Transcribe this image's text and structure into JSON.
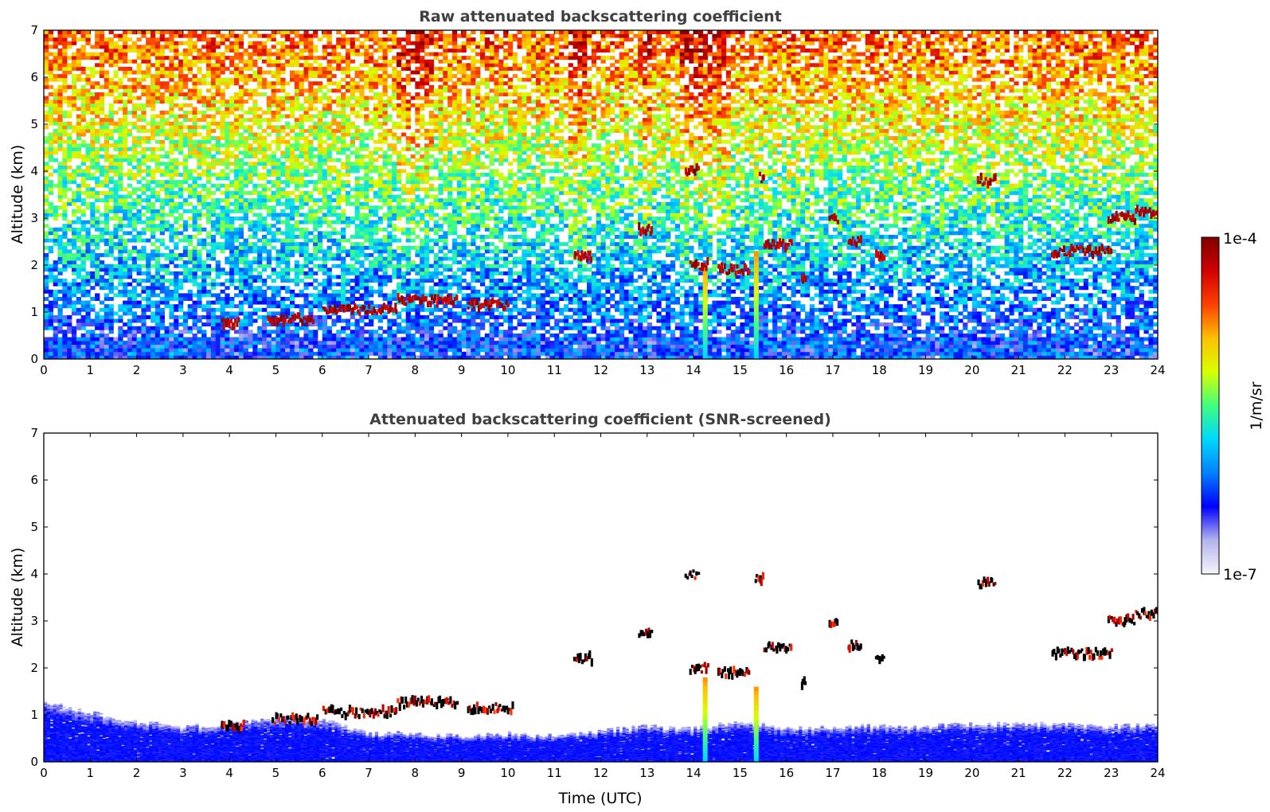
{
  "figure": {
    "colorbar": {
      "max_label": "1e-4",
      "min_label": "1e-7",
      "unit_label": "1/m/sr",
      "vmin": 1e-07,
      "vmax": 0.0001,
      "scale": "log",
      "colormap": [
        "#f4f4fb",
        "#b4b4ee",
        "#0000ff",
        "#0080ff",
        "#00d8ff",
        "#40ff80",
        "#d8ff00",
        "#ffc000",
        "#ff4000",
        "#d00000",
        "#800000"
      ]
    }
  },
  "chart_data": [
    {
      "type": "heatmap",
      "title": "Raw attenuated backscattering coefficient",
      "xlabel": "",
      "ylabel": "Altitude (km)",
      "xlim": [
        0,
        24
      ],
      "ylim": [
        0,
        7
      ],
      "xticks": [
        "0",
        "1",
        "2",
        "3",
        "4",
        "5",
        "6",
        "7",
        "8",
        "9",
        "10",
        "11",
        "12",
        "13",
        "14",
        "15",
        "16",
        "17",
        "18",
        "19",
        "20",
        "21",
        "22",
        "23",
        "24"
      ],
      "yticks": [
        "0",
        "1",
        "2",
        "3",
        "4",
        "5",
        "6",
        "7"
      ],
      "surface_layer_top_km": 0.45,
      "cloud_features": [
        {
          "t_start": 3.8,
          "t_end": 4.2,
          "alt_km": 0.75
        },
        {
          "t_start": 4.8,
          "t_end": 5.8,
          "alt_km": 0.85
        },
        {
          "t_start": 6.0,
          "t_end": 7.6,
          "alt_km": 1.05
        },
        {
          "t_start": 7.6,
          "t_end": 8.9,
          "alt_km": 1.25
        },
        {
          "t_start": 9.1,
          "t_end": 10.0,
          "alt_km": 1.15
        },
        {
          "t_start": 11.4,
          "t_end": 11.8,
          "alt_km": 2.2
        },
        {
          "t_start": 12.8,
          "t_end": 13.1,
          "alt_km": 2.75
        },
        {
          "t_start": 13.8,
          "t_end": 14.1,
          "alt_km": 4.0
        },
        {
          "t_start": 13.9,
          "t_end": 14.3,
          "alt_km": 2.0
        },
        {
          "t_start": 14.5,
          "t_end": 15.2,
          "alt_km": 1.9
        },
        {
          "t_start": 15.4,
          "t_end": 15.5,
          "alt_km": 3.85
        },
        {
          "t_start": 15.5,
          "t_end": 16.1,
          "alt_km": 2.45
        },
        {
          "t_start": 16.3,
          "t_end": 16.4,
          "alt_km": 1.7
        },
        {
          "t_start": 16.9,
          "t_end": 17.1,
          "alt_km": 2.95
        },
        {
          "t_start": 17.3,
          "t_end": 17.6,
          "alt_km": 2.5
        },
        {
          "t_start": 17.9,
          "t_end": 18.1,
          "alt_km": 2.2
        },
        {
          "t_start": 20.1,
          "t_end": 20.5,
          "alt_km": 3.8
        },
        {
          "t_start": 21.7,
          "t_end": 22.1,
          "alt_km": 2.3
        },
        {
          "t_start": 22.1,
          "t_end": 23.0,
          "alt_km": 2.3
        },
        {
          "t_start": 22.9,
          "t_end": 23.5,
          "alt_km": 3.0
        },
        {
          "t_start": 23.5,
          "t_end": 24.0,
          "alt_km": 3.15
        }
      ],
      "precip_shafts": [
        {
          "time": 14.25,
          "alt_top_km": 2.0
        },
        {
          "time": 15.35,
          "alt_top_km": 2.3
        }
      ]
    },
    {
      "type": "heatmap",
      "title": "Attenuated backscattering coefficient (SNR-screened)",
      "xlabel": "Time (UTC)",
      "ylabel": "Altitude (km)",
      "xlim": [
        0,
        24
      ],
      "ylim": [
        0,
        7
      ],
      "xticks": [
        "0",
        "1",
        "2",
        "3",
        "4",
        "5",
        "6",
        "7",
        "8",
        "9",
        "10",
        "11",
        "12",
        "13",
        "14",
        "15",
        "16",
        "17",
        "18",
        "19",
        "20",
        "21",
        "22",
        "23",
        "24"
      ],
      "yticks": [
        "0",
        "1",
        "2",
        "3",
        "4",
        "5",
        "6",
        "7"
      ],
      "boundary_layer_top_km": [
        [
          0,
          1.3
        ],
        [
          1,
          1.05
        ],
        [
          2,
          0.85
        ],
        [
          3,
          0.75
        ],
        [
          4,
          0.8
        ],
        [
          5,
          0.95
        ],
        [
          6,
          0.9
        ],
        [
          7,
          0.6
        ],
        [
          8,
          0.6
        ],
        [
          9,
          0.55
        ],
        [
          10,
          0.6
        ],
        [
          11,
          0.55
        ],
        [
          12,
          0.65
        ],
        [
          13,
          0.75
        ],
        [
          14,
          0.7
        ],
        [
          15,
          0.85
        ],
        [
          16,
          0.7
        ],
        [
          17,
          0.75
        ],
        [
          18,
          0.75
        ],
        [
          19,
          0.75
        ],
        [
          20,
          0.8
        ],
        [
          21,
          0.8
        ],
        [
          22,
          0.8
        ],
        [
          23,
          0.75
        ],
        [
          24,
          0.8
        ]
      ],
      "cloud_features": [
        {
          "t_start": 3.8,
          "t_end": 4.3,
          "alt_km": 0.75
        },
        {
          "t_start": 4.9,
          "t_end": 5.9,
          "alt_km": 0.9
        },
        {
          "t_start": 6.0,
          "t_end": 7.6,
          "alt_km": 1.05
        },
        {
          "t_start": 7.6,
          "t_end": 8.9,
          "alt_km": 1.25
        },
        {
          "t_start": 9.1,
          "t_end": 10.1,
          "alt_km": 1.15
        },
        {
          "t_start": 11.4,
          "t_end": 11.8,
          "alt_km": 2.2
        },
        {
          "t_start": 12.8,
          "t_end": 13.1,
          "alt_km": 2.75
        },
        {
          "t_start": 13.8,
          "t_end": 14.1,
          "alt_km": 4.0
        },
        {
          "t_start": 13.9,
          "t_end": 14.3,
          "alt_km": 2.0
        },
        {
          "t_start": 14.5,
          "t_end": 15.2,
          "alt_km": 1.9
        },
        {
          "t_start": 15.3,
          "t_end": 15.5,
          "alt_km": 3.9
        },
        {
          "t_start": 15.5,
          "t_end": 16.1,
          "alt_km": 2.45
        },
        {
          "t_start": 16.3,
          "t_end": 16.4,
          "alt_km": 1.7
        },
        {
          "t_start": 16.9,
          "t_end": 17.1,
          "alt_km": 2.95
        },
        {
          "t_start": 17.3,
          "t_end": 17.6,
          "alt_km": 2.5
        },
        {
          "t_start": 17.9,
          "t_end": 18.1,
          "alt_km": 2.2
        },
        {
          "t_start": 20.1,
          "t_end": 20.5,
          "alt_km": 3.8
        },
        {
          "t_start": 21.7,
          "t_end": 22.1,
          "alt_km": 2.3
        },
        {
          "t_start": 22.1,
          "t_end": 23.0,
          "alt_km": 2.3
        },
        {
          "t_start": 22.9,
          "t_end": 23.5,
          "alt_km": 3.0
        },
        {
          "t_start": 23.5,
          "t_end": 24.0,
          "alt_km": 3.15
        }
      ],
      "precip_shafts": [
        {
          "time": 14.25,
          "alt_top_km": 1.8
        },
        {
          "time": 15.35,
          "alt_top_km": 1.6
        }
      ]
    }
  ]
}
